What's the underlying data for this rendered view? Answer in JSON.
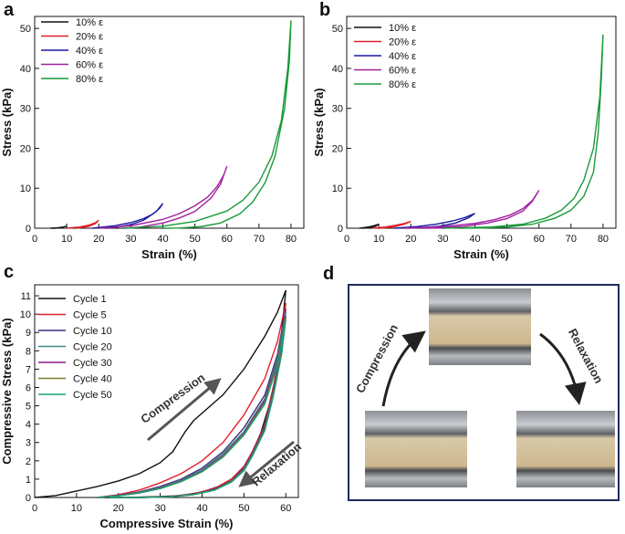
{
  "chart_data": [
    {
      "type": "line",
      "panel": "a",
      "x_label": "Strain (%)",
      "y_label": "Stress (kPa)",
      "xlim": [
        0,
        84
      ],
      "ylim": [
        0,
        53
      ],
      "xticks": [
        0,
        10,
        20,
        30,
        40,
        50,
        60,
        70,
        80
      ],
      "yticks": [
        0,
        10,
        20,
        30,
        40,
        50
      ],
      "legend": "upper left",
      "series": [
        {
          "name": "10% ε",
          "color": "#111111",
          "x": [
            5,
            7,
            9,
            10,
            9,
            8,
            6
          ],
          "values": [
            0,
            0.1,
            0.3,
            0.5,
            0.3,
            0.1,
            0
          ]
        },
        {
          "name": "20% ε",
          "color": "#e0202a",
          "x": [
            10,
            14,
            17,
            19,
            20,
            19,
            17,
            15,
            13
          ],
          "values": [
            0,
            0.3,
            0.8,
            1.4,
            2.0,
            1.2,
            0.5,
            0.2,
            0
          ]
        },
        {
          "name": "40% ε",
          "color": "#1a1aa0",
          "x": [
            18,
            25,
            30,
            34,
            37,
            39,
            40,
            38,
            34,
            30,
            26,
            22
          ],
          "values": [
            0,
            0.6,
            1.4,
            2.4,
            3.6,
            5,
            6.2,
            4.2,
            2.0,
            0.9,
            0.3,
            0
          ]
        },
        {
          "name": "60% ε",
          "color": "#a020a0",
          "x": [
            20,
            30,
            40,
            45,
            50,
            54,
            57,
            59,
            60,
            58,
            55,
            50,
            45,
            40,
            33,
            28
          ],
          "values": [
            0,
            0.6,
            2.2,
            3.6,
            5.6,
            7.8,
            10.5,
            13.3,
            15.5,
            11,
            7.5,
            4.2,
            2.5,
            1.3,
            0.3,
            0
          ]
        },
        {
          "name": "80% ε",
          "color": "#1a9a3a",
          "x": [
            28,
            40,
            50,
            60,
            65,
            70,
            74,
            77,
            79,
            80,
            79.5,
            78,
            75,
            72,
            68,
            64,
            58,
            52,
            45,
            40
          ],
          "values": [
            0,
            0.5,
            1.7,
            4.3,
            7,
            11.5,
            18,
            27,
            40,
            52,
            42,
            30,
            18,
            11.5,
            6.5,
            3.6,
            1.3,
            0.4,
            0.05,
            0
          ]
        }
      ]
    },
    {
      "type": "line",
      "panel": "b",
      "x_label": "Strain (%)",
      "y_label": "Stress (kPa)",
      "xlim": [
        0,
        84
      ],
      "ylim": [
        0,
        53
      ],
      "xticks": [
        0,
        10,
        20,
        30,
        40,
        50,
        60,
        70,
        80
      ],
      "yticks": [
        0,
        10,
        20,
        30,
        40,
        50
      ],
      "legend": "upper left",
      "series": [
        {
          "name": "10% ε",
          "color": "#111111",
          "x": [
            4,
            6,
            8,
            10,
            9,
            7,
            5
          ],
          "values": [
            0,
            0.2,
            0.5,
            1.0,
            0.5,
            0.15,
            0
          ]
        },
        {
          "name": "20% ε",
          "color": "#e0202a",
          "x": [
            8,
            12,
            15,
            18,
            20,
            18,
            15,
            12,
            10
          ],
          "values": [
            0,
            0.3,
            0.7,
            1.2,
            1.7,
            1.0,
            0.4,
            0.1,
            0
          ]
        },
        {
          "name": "40% ε",
          "color": "#1a1aa0",
          "x": [
            15,
            22,
            28,
            33,
            37,
            40,
            38,
            34,
            29,
            24,
            19
          ],
          "values": [
            0,
            0.4,
            1.0,
            1.8,
            2.7,
            3.7,
            2.6,
            1.3,
            0.5,
            0.15,
            0
          ]
        },
        {
          "name": "60% ε",
          "color": "#a020a0",
          "x": [
            18,
            30,
            40,
            46,
            51,
            55,
            58,
            60,
            58,
            55,
            50,
            44,
            37,
            30,
            24
          ],
          "values": [
            0,
            0.4,
            1.2,
            2.1,
            3.3,
            4.9,
            7,
            9.5,
            6.8,
            4.3,
            2.4,
            1.3,
            0.5,
            0.1,
            0
          ]
        },
        {
          "name": "80% ε",
          "color": "#1a9a3a",
          "x": [
            30,
            45,
            55,
            62,
            67,
            71,
            74,
            77,
            79,
            80,
            79.5,
            78.5,
            77,
            74,
            70,
            65,
            58,
            50,
            42,
            36
          ],
          "values": [
            0,
            0.3,
            1.0,
            2.5,
            4.5,
            7.5,
            12,
            20,
            33,
            48.5,
            38,
            24,
            14,
            8,
            4.5,
            2.5,
            1.0,
            0.3,
            0.05,
            0
          ]
        }
      ]
    },
    {
      "type": "line",
      "panel": "c",
      "x_label": "Compressive Strain (%)",
      "y_label": "Compressive Stress (kPa)",
      "xlim": [
        0,
        63
      ],
      "ylim": [
        0,
        11.6
      ],
      "xticks": [
        0,
        10,
        20,
        30,
        40,
        50,
        60
      ],
      "yticks": [
        0,
        1,
        2,
        3,
        4,
        5,
        6,
        7,
        8,
        9,
        10,
        11
      ],
      "legend": "upper left",
      "annotations": [
        "Compression",
        "Relaxation"
      ],
      "series": [
        {
          "name": "Cycle 1",
          "color": "#111111",
          "x": [
            0,
            5,
            10,
            15,
            20,
            25,
            30,
            33,
            36,
            38,
            40,
            45,
            50,
            55,
            58,
            60,
            59,
            58,
            56,
            54,
            52,
            50,
            47,
            44,
            40,
            35,
            30,
            25,
            20,
            15
          ],
          "values": [
            0,
            0.1,
            0.35,
            0.6,
            0.9,
            1.3,
            1.9,
            2.5,
            3.6,
            4.2,
            4.6,
            5.6,
            7,
            8.8,
            10.1,
            11.3,
            9,
            7,
            5,
            3.5,
            2.4,
            1.6,
            1,
            0.6,
            0.3,
            0.1,
            0.05,
            0.02,
            0,
            0
          ]
        },
        {
          "name": "Cycle 5",
          "color": "#e0202a",
          "x": [
            15,
            20,
            25,
            30,
            35,
            40,
            45,
            50,
            55,
            58,
            60,
            59,
            57,
            55,
            52,
            50,
            47,
            43,
            38,
            32,
            25,
            18
          ],
          "values": [
            0,
            0.15,
            0.4,
            0.8,
            1.3,
            2,
            3,
            4.5,
            6.5,
            8.5,
            10.6,
            8.5,
            6,
            4,
            2.5,
            1.7,
            1,
            0.5,
            0.2,
            0.05,
            0,
            0
          ]
        },
        {
          "name": "Cycle 10",
          "color": "#3a2f80",
          "x": [
            15,
            20,
            25,
            30,
            35,
            40,
            45,
            50,
            55,
            58,
            60,
            59,
            57,
            55,
            52,
            50,
            47,
            43,
            38,
            32,
            25,
            18
          ],
          "values": [
            0,
            0.12,
            0.3,
            0.6,
            1.0,
            1.6,
            2.5,
            3.8,
            5.6,
            7.8,
            10.3,
            8.2,
            5.8,
            3.9,
            2.4,
            1.6,
            0.9,
            0.45,
            0.18,
            0.04,
            0,
            0
          ]
        },
        {
          "name": "Cycle 20",
          "color": "#3a8a8a",
          "x": [
            15,
            20,
            25,
            30,
            35,
            40,
            45,
            50,
            55,
            58,
            60,
            59,
            57,
            55,
            52,
            50,
            47,
            43,
            38,
            32,
            25,
            18
          ],
          "values": [
            0,
            0.1,
            0.28,
            0.55,
            0.95,
            1.5,
            2.4,
            3.6,
            5.4,
            7.6,
            10.1,
            8.1,
            5.7,
            3.8,
            2.35,
            1.55,
            0.88,
            0.43,
            0.17,
            0.04,
            0,
            0
          ]
        },
        {
          "name": "Cycle 30",
          "color": "#8b1a8b",
          "x": [
            15,
            20,
            25,
            30,
            35,
            40,
            45,
            50,
            55,
            58,
            60,
            59,
            57,
            55,
            52,
            50,
            47,
            43,
            38,
            32,
            25,
            18
          ],
          "values": [
            0,
            0.1,
            0.26,
            0.52,
            0.9,
            1.45,
            2.3,
            3.5,
            5.3,
            7.4,
            9.9,
            8.0,
            5.6,
            3.75,
            2.3,
            1.5,
            0.86,
            0.42,
            0.16,
            0.03,
            0,
            0
          ]
        },
        {
          "name": "Cycle 40",
          "color": "#7a7a2a",
          "x": [
            15,
            20,
            25,
            30,
            35,
            40,
            45,
            50,
            55,
            58,
            60,
            59,
            57,
            55,
            52,
            50,
            47,
            43,
            38,
            32,
            25,
            18
          ],
          "values": [
            0,
            0.09,
            0.25,
            0.5,
            0.88,
            1.42,
            2.25,
            3.45,
            5.2,
            7.3,
            9.8,
            7.9,
            5.55,
            3.7,
            2.28,
            1.48,
            0.85,
            0.41,
            0.16,
            0.03,
            0,
            0
          ]
        },
        {
          "name": "Cycle 50",
          "color": "#1aa070",
          "x": [
            15,
            20,
            25,
            30,
            35,
            40,
            45,
            50,
            55,
            58,
            60,
            59,
            57,
            55,
            52,
            50,
            47,
            43,
            38,
            32,
            25,
            18
          ],
          "values": [
            0,
            0.09,
            0.24,
            0.48,
            0.86,
            1.4,
            2.2,
            3.4,
            5.1,
            7.2,
            9.7,
            7.8,
            5.5,
            3.65,
            2.25,
            1.46,
            0.84,
            0.4,
            0.15,
            0.03,
            0,
            0
          ]
        }
      ]
    }
  ],
  "diagram": {
    "label": "d",
    "arrows": [
      "Compression",
      "Relaxation"
    ]
  }
}
